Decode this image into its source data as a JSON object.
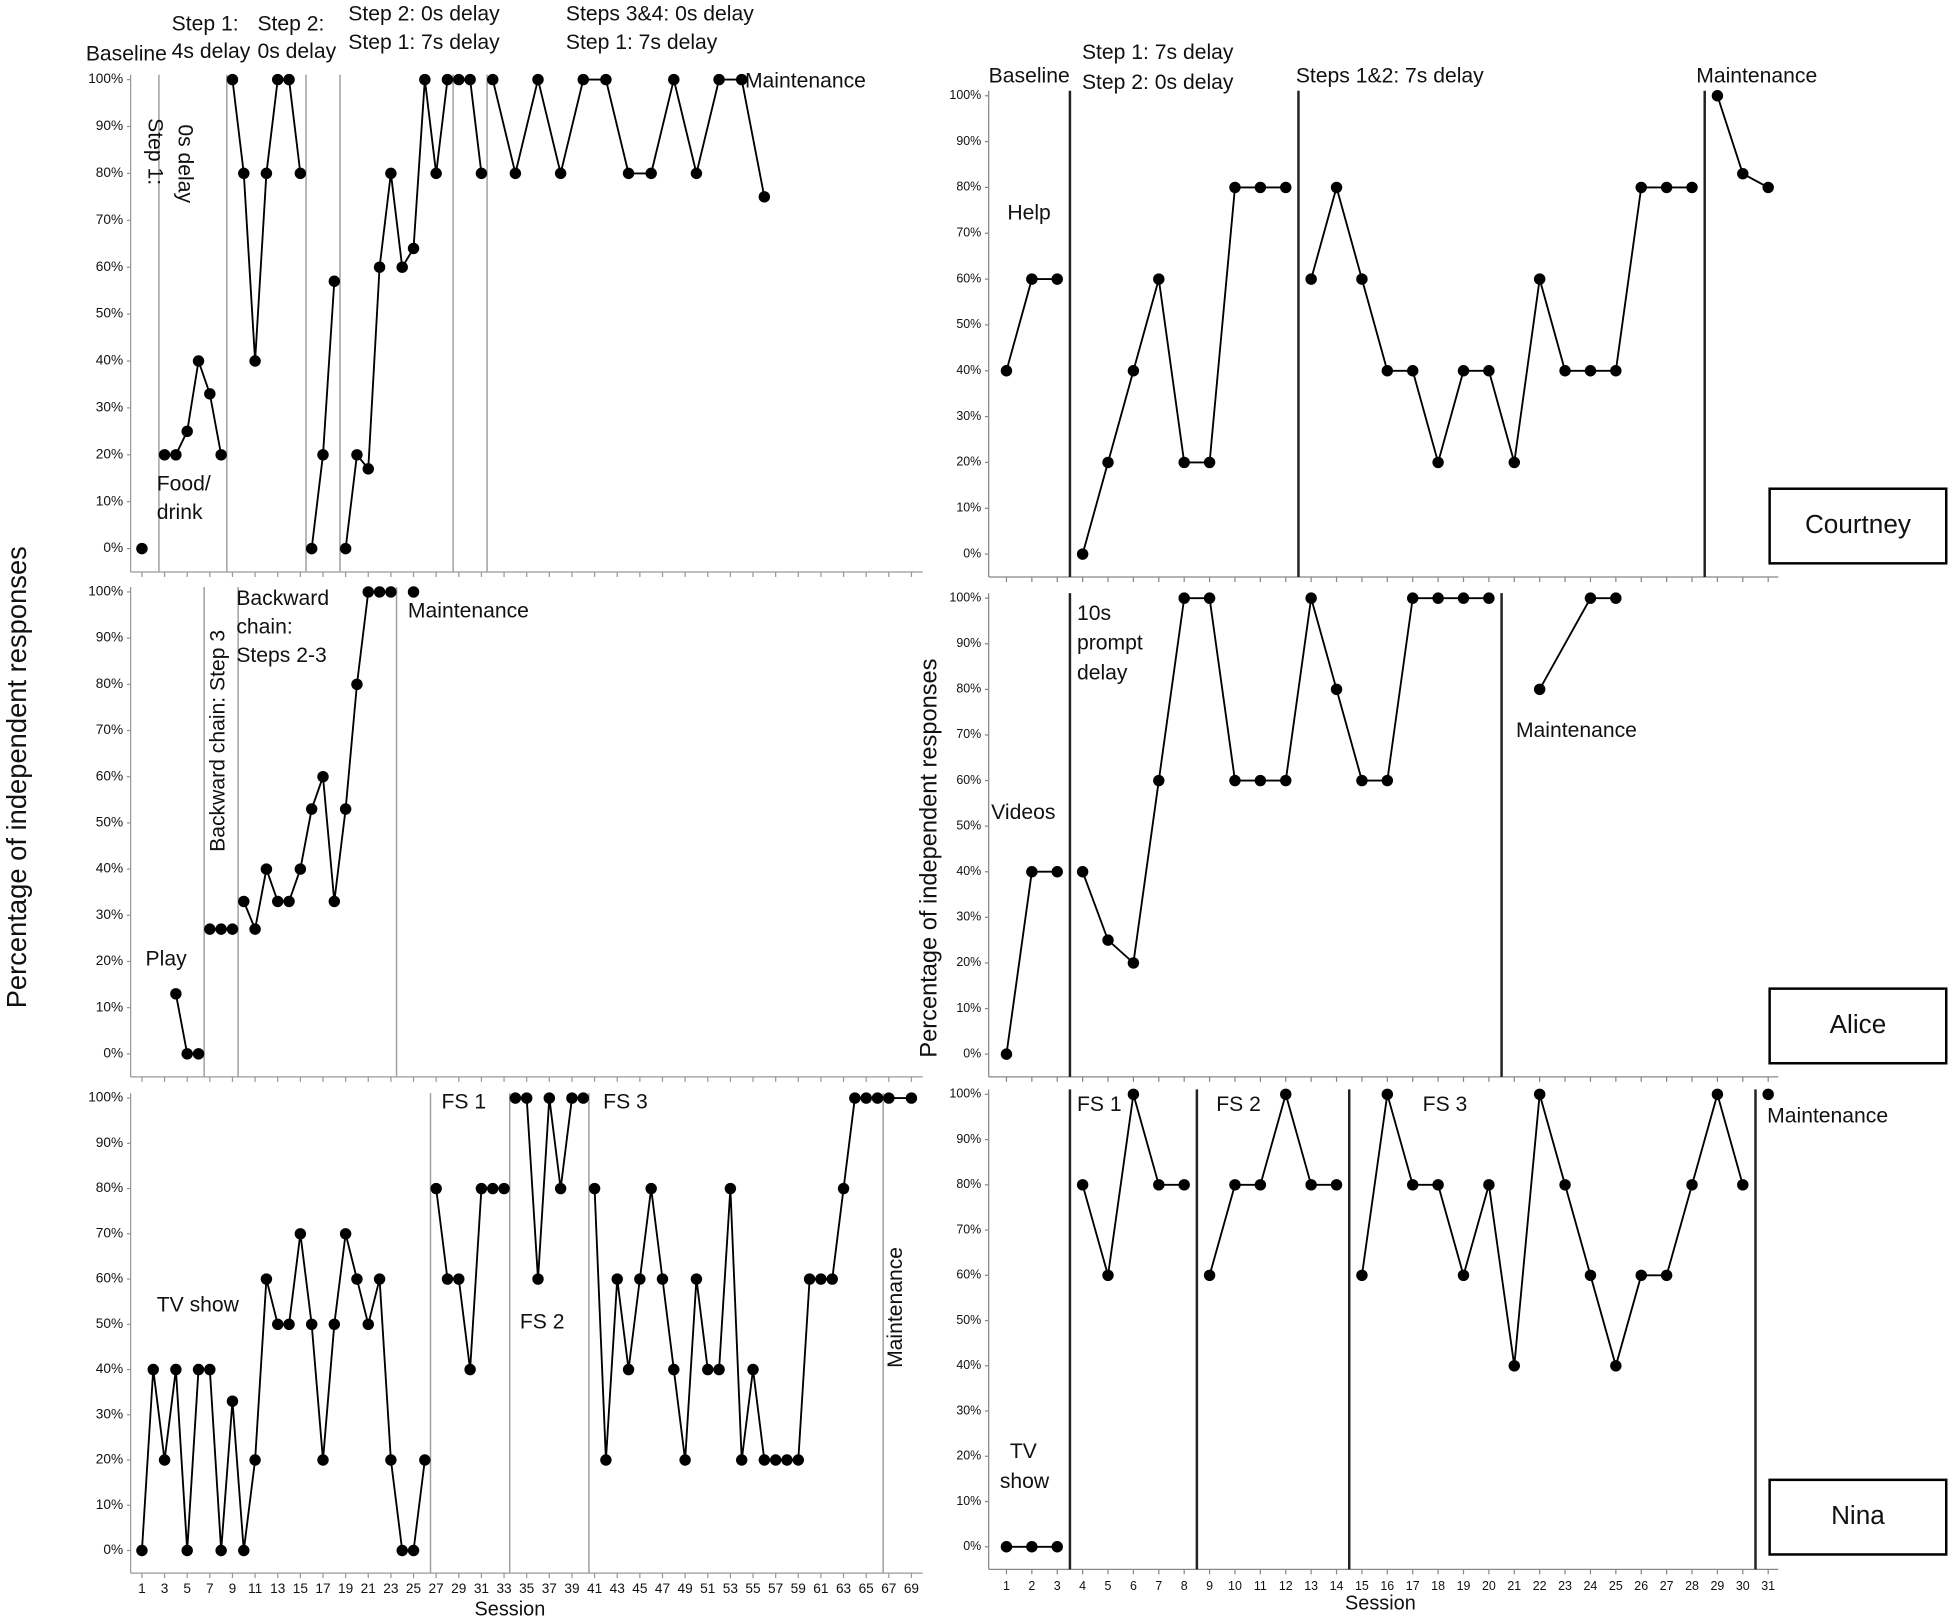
{
  "chart_data": [
    {
      "type": "line",
      "color": "#000000",
      "axis_color": "#999999",
      "phase_line_color": "#a0a0a0",
      "xlim": [
        0,
        70
      ],
      "ylim": [
        -5,
        100
      ],
      "yticks": [
        {
          "value": 0,
          "label": "0%"
        },
        {
          "value": 10,
          "label": "10%"
        },
        {
          "value": 20,
          "label": "20%"
        },
        {
          "value": 30,
          "label": "30%"
        },
        {
          "value": 40,
          "label": "40%"
        },
        {
          "value": 50,
          "label": "50%"
        },
        {
          "value": 60,
          "label": "60%"
        },
        {
          "value": 70,
          "label": "70%"
        },
        {
          "value": 80,
          "label": "80%"
        },
        {
          "value": 90,
          "label": "90%"
        },
        {
          "value": 100,
          "label": "100%"
        }
      ],
      "phase_lines": [
        2.5,
        8.5,
        15.5,
        18.5,
        28.5,
        31.5
      ],
      "series": [
        {
          "x": [
            1
          ],
          "values": [
            0
          ]
        },
        {
          "x": [
            3,
            4,
            5,
            6,
            7,
            8
          ],
          "values": [
            20,
            20,
            25,
            40,
            33,
            20
          ]
        },
        {
          "x": [
            9,
            10,
            11,
            12,
            13,
            14,
            15
          ],
          "values": [
            100,
            80,
            40,
            80,
            100,
            100,
            80
          ]
        },
        {
          "x": [
            16,
            17,
            18
          ],
          "values": [
            0,
            20,
            57
          ]
        },
        {
          "x": [
            19,
            20,
            21,
            22,
            23,
            24,
            25,
            26,
            27,
            28
          ],
          "values": [
            0,
            20,
            17,
            60,
            80,
            60,
            64,
            100,
            80,
            100
          ]
        },
        {
          "x": [
            29,
            30,
            31
          ],
          "values": [
            100,
            100,
            80
          ]
        },
        {
          "x": [
            32,
            34,
            36,
            38,
            40,
            42,
            44,
            46,
            48,
            50,
            52,
            54,
            56
          ],
          "values": [
            100,
            80,
            100,
            80,
            100,
            100,
            80,
            80,
            100,
            80,
            100,
            100,
            75
          ]
        }
      ],
      "annotations": [
        [
          "Baseline"
        ],
        [
          "Step 1:",
          "0s delay"
        ],
        [
          "Step 1:",
          "4s delay"
        ],
        [
          "Step 2:",
          "0s delay"
        ],
        [
          "Step 2: 0s delay",
          "Step 1: 7s delay"
        ],
        [
          "Steps 3&4: 0s delay",
          "Step 1: 7s delay"
        ],
        [
          "Maintenance"
        ],
        [
          "Food/",
          "drink"
        ]
      ]
    },
    {
      "type": "line",
      "color": "#000000",
      "axis_color": "#999999",
      "phase_line_color": "#a0a0a0",
      "ylabel": "Percentage of independent responses",
      "xlim": [
        0,
        70
      ],
      "ylim": [
        -5,
        100
      ],
      "yticks": [
        {
          "value": 0,
          "label": "0%"
        },
        {
          "value": 10,
          "label": "10%"
        },
        {
          "value": 20,
          "label": "20%"
        },
        {
          "value": 30,
          "label": "30%"
        },
        {
          "value": 40,
          "label": "40%"
        },
        {
          "value": 50,
          "label": "50%"
        },
        {
          "value": 60,
          "label": "60%"
        },
        {
          "value": 70,
          "label": "70%"
        },
        {
          "value": 80,
          "label": "80%"
        },
        {
          "value": 90,
          "label": "90%"
        },
        {
          "value": 100,
          "label": "100%"
        }
      ],
      "phase_lines": [
        6.5,
        9.5,
        23.5
      ],
      "series": [
        {
          "x": [
            4,
            5,
            6
          ],
          "values": [
            13,
            0,
            0
          ]
        },
        {
          "x": [
            7,
            8,
            9
          ],
          "values": [
            27,
            27,
            27
          ]
        },
        {
          "x": [
            10,
            11,
            12,
            13,
            14,
            15,
            16,
            17,
            18,
            19,
            20,
            21,
            22,
            23
          ],
          "values": [
            33,
            27,
            40,
            33,
            33,
            40,
            53,
            60,
            33,
            53,
            80,
            100,
            100,
            100
          ]
        },
        {
          "x": [
            25
          ],
          "values": [
            100
          ]
        }
      ],
      "annotations": [
        [
          "Play"
        ],
        [
          "Backward chain: Step 3"
        ],
        [
          "Backward",
          "chain:",
          "Steps 2-3"
        ],
        [
          "Maintenance"
        ]
      ]
    },
    {
      "type": "line",
      "color": "#000000",
      "axis_color": "#999999",
      "phase_line_color": "#a0a0a0",
      "xlabel": "Session",
      "xlim": [
        0,
        70
      ],
      "ylim": [
        -5,
        100
      ],
      "xticks": [
        1,
        3,
        5,
        7,
        9,
        11,
        13,
        15,
        17,
        19,
        21,
        23,
        25,
        27,
        29,
        31,
        33,
        35,
        37,
        39,
        41,
        43,
        45,
        47,
        49,
        51,
        53,
        55,
        57,
        59,
        61,
        63,
        65,
        67,
        69
      ],
      "yticks": [
        {
          "value": 0,
          "label": "0%"
        },
        {
          "value": 10,
          "label": "10%"
        },
        {
          "value": 20,
          "label": "20%"
        },
        {
          "value": 30,
          "label": "30%"
        },
        {
          "value": 40,
          "label": "40%"
        },
        {
          "value": 50,
          "label": "50%"
        },
        {
          "value": 60,
          "label": "60%"
        },
        {
          "value": 70,
          "label": "70%"
        },
        {
          "value": 80,
          "label": "80%"
        },
        {
          "value": 90,
          "label": "90%"
        },
        {
          "value": 100,
          "label": "100%"
        }
      ],
      "phase_lines": [
        26.5,
        33.5,
        40.5,
        66.5
      ],
      "series": [
        {
          "x": [
            1,
            2,
            3,
            4,
            5,
            6,
            7,
            8,
            9,
            10,
            11,
            12,
            13,
            14,
            15,
            16,
            17,
            18,
            19,
            20,
            21,
            22,
            23,
            24,
            25,
            26
          ],
          "values": [
            0,
            40,
            20,
            40,
            0,
            40,
            40,
            0,
            33,
            0,
            20,
            60,
            50,
            50,
            70,
            50,
            20,
            50,
            70,
            60,
            50,
            60,
            20,
            0,
            0,
            20
          ]
        },
        {
          "x": [
            27,
            28,
            29,
            30,
            31,
            32,
            33
          ],
          "values": [
            80,
            60,
            60,
            40,
            80,
            80,
            80
          ]
        },
        {
          "x": [
            34,
            35,
            36,
            37,
            38,
            39,
            40
          ],
          "values": [
            100,
            100,
            60,
            100,
            80,
            100,
            100
          ]
        },
        {
          "x": [
            41,
            42,
            43,
            44,
            45,
            46,
            47,
            48,
            49,
            50,
            51,
            52,
            53,
            54,
            55,
            56,
            57,
            58,
            59,
            60,
            61,
            62,
            63,
            64,
            65,
            66
          ],
          "values": [
            80,
            20,
            60,
            40,
            60,
            80,
            60,
            40,
            20,
            60,
            40,
            40,
            80,
            20,
            40,
            20,
            20,
            20,
            20,
            60,
            60,
            60,
            80,
            100,
            100,
            100
          ]
        },
        {
          "x": [
            67,
            69
          ],
          "values": [
            100,
            100
          ]
        }
      ],
      "annotations": [
        [
          "TV show"
        ],
        [
          "FS 1"
        ],
        [
          "FS 2"
        ],
        [
          "FS 3"
        ],
        [
          "Maintenance"
        ]
      ]
    },
    {
      "type": "line",
      "color": "#000000",
      "axis_color": "#888888",
      "phase_line_color": "#222222",
      "name": "Courtney",
      "xlim": [
        0.3,
        31.4
      ],
      "ylim": [
        -5,
        100
      ],
      "yticks": [
        {
          "value": 0,
          "label": "0%"
        },
        {
          "value": 10,
          "label": "10%"
        },
        {
          "value": 20,
          "label": "20%"
        },
        {
          "value": 30,
          "label": "30%"
        },
        {
          "value": 40,
          "label": "40%"
        },
        {
          "value": 50,
          "label": "50%"
        },
        {
          "value": 60,
          "label": "60%"
        },
        {
          "value": 70,
          "label": "70%"
        },
        {
          "value": 80,
          "label": "80%"
        },
        {
          "value": 90,
          "label": "90%"
        },
        {
          "value": 100,
          "label": "100%"
        }
      ],
      "phase_lines": [
        3.5,
        12.5,
        28.5
      ],
      "series": [
        {
          "x": [
            1,
            2,
            3
          ],
          "values": [
            40,
            60,
            60
          ]
        },
        {
          "x": [
            4,
            5,
            6,
            7,
            8,
            9,
            10,
            11,
            12
          ],
          "values": [
            0,
            20,
            40,
            60,
            20,
            20,
            80,
            80,
            80
          ]
        },
        {
          "x": [
            13,
            14,
            15,
            16,
            17,
            18,
            19,
            20,
            21,
            22,
            23,
            24,
            25,
            26,
            27,
            28
          ],
          "values": [
            60,
            80,
            60,
            40,
            40,
            20,
            40,
            40,
            20,
            60,
            40,
            40,
            40,
            80,
            80,
            80
          ]
        },
        {
          "x": [
            29,
            30,
            31
          ],
          "values": [
            100,
            83,
            80
          ]
        }
      ],
      "annotations": [
        [
          "Baseline"
        ],
        [
          "Step 1: 7s delay",
          "Step 2: 0s delay"
        ],
        [
          "Steps 1&2: 7s delay"
        ],
        [
          "Maintenance"
        ],
        [
          "Help"
        ]
      ]
    },
    {
      "type": "line",
      "color": "#000000",
      "axis_color": "#888888",
      "phase_line_color": "#222222",
      "name": "Alice",
      "ylabel": "Percentage of independent responses",
      "xlim": [
        0.3,
        31.4
      ],
      "ylim": [
        -5,
        100
      ],
      "yticks": [
        {
          "value": 0,
          "label": "0%"
        },
        {
          "value": 10,
          "label": "10%"
        },
        {
          "value": 20,
          "label": "20%"
        },
        {
          "value": 30,
          "label": "30%"
        },
        {
          "value": 40,
          "label": "40%"
        },
        {
          "value": 50,
          "label": "50%"
        },
        {
          "value": 60,
          "label": "60%"
        },
        {
          "value": 70,
          "label": "70%"
        },
        {
          "value": 80,
          "label": "80%"
        },
        {
          "value": 90,
          "label": "90%"
        },
        {
          "value": 100,
          "label": "100%"
        }
      ],
      "phase_lines": [
        3.5,
        20.5
      ],
      "series": [
        {
          "x": [
            1,
            2,
            3
          ],
          "values": [
            0,
            40,
            40
          ]
        },
        {
          "x": [
            4,
            5,
            6,
            7,
            8,
            9,
            10,
            11,
            12,
            13,
            14,
            15,
            16,
            17,
            18,
            19,
            20
          ],
          "values": [
            40,
            25,
            20,
            60,
            100,
            100,
            60,
            60,
            60,
            100,
            80,
            60,
            60,
            100,
            100,
            100,
            100
          ]
        },
        {
          "x": [
            22,
            24,
            25
          ],
          "values": [
            80,
            100,
            100
          ]
        }
      ],
      "annotations": [
        [
          "10s",
          "prompt",
          "delay"
        ],
        [
          "Videos"
        ],
        [
          "Maintenance"
        ]
      ]
    },
    {
      "type": "line",
      "color": "#000000",
      "axis_color": "#888888",
      "phase_line_color": "#222222",
      "name": "Nina",
      "xlabel": "Session",
      "xlim": [
        0.3,
        31.4
      ],
      "ylim": [
        -5,
        100
      ],
      "xticks": [
        1,
        2,
        3,
        4,
        5,
        6,
        7,
        8,
        9,
        10,
        11,
        12,
        13,
        14,
        15,
        16,
        17,
        18,
        19,
        20,
        21,
        22,
        23,
        24,
        25,
        26,
        27,
        28,
        29,
        30,
        31
      ],
      "yticks": [
        {
          "value": 0,
          "label": "0%"
        },
        {
          "value": 10,
          "label": "10%"
        },
        {
          "value": 20,
          "label": "20%"
        },
        {
          "value": 30,
          "label": "30%"
        },
        {
          "value": 40,
          "label": "40%"
        },
        {
          "value": 50,
          "label": "50%"
        },
        {
          "value": 60,
          "label": "60%"
        },
        {
          "value": 70,
          "label": "70%"
        },
        {
          "value": 80,
          "label": "80%"
        },
        {
          "value": 90,
          "label": "90%"
        },
        {
          "value": 100,
          "label": "100%"
        }
      ],
      "phase_lines": [
        3.5,
        8.5,
        14.5,
        30.5
      ],
      "series": [
        {
          "x": [
            1,
            2,
            3
          ],
          "values": [
            0,
            0,
            0
          ]
        },
        {
          "x": [
            4,
            5,
            6,
            7,
            8
          ],
          "values": [
            80,
            60,
            100,
            80,
            80
          ]
        },
        {
          "x": [
            9,
            10,
            11,
            12,
            13,
            14
          ],
          "values": [
            60,
            80,
            80,
            100,
            80,
            80
          ]
        },
        {
          "x": [
            15,
            16,
            17,
            18,
            19,
            20,
            21,
            22,
            23,
            24,
            25,
            26,
            27,
            28,
            29,
            30
          ],
          "values": [
            60,
            100,
            80,
            80,
            60,
            80,
            40,
            100,
            80,
            60,
            40,
            60,
            60,
            80,
            100,
            80
          ]
        },
        {
          "x": [
            31
          ],
          "values": [
            100
          ]
        }
      ],
      "annotations": [
        [
          "TV",
          "show"
        ],
        [
          "FS 1"
        ],
        [
          "FS 2"
        ],
        [
          "FS 3"
        ],
        [
          "Maintenance"
        ]
      ]
    }
  ]
}
